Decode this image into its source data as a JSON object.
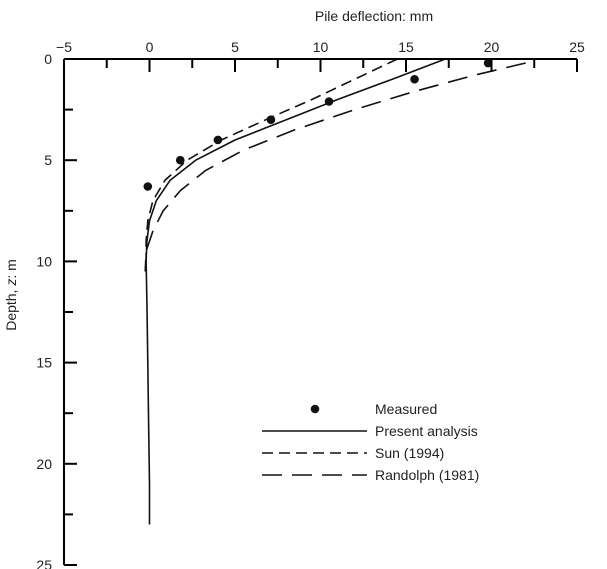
{
  "chart_data": {
    "type": "line",
    "xlabel": "Pile deflection: mm",
    "ylabel_prefix": "Depth, ",
    "ylabel_symbol": "z",
    "ylabel_suffix": ": m",
    "xlim": [
      -5,
      25
    ],
    "ylim": [
      0,
      25
    ],
    "y_inverted": true,
    "x_axis_position": "top",
    "grid": false,
    "legend_position": "bottom-right",
    "x_ticks": [
      -5,
      0,
      5,
      10,
      15,
      20,
      25
    ],
    "x_tick_labels": [
      "−5",
      "0",
      "5",
      "10",
      "15",
      "20",
      "25"
    ],
    "y_ticks": [
      0,
      5,
      10,
      15,
      20,
      25
    ],
    "y_tick_labels": [
      "0",
      "5",
      "10",
      "15",
      "20",
      "25"
    ],
    "series": [
      {
        "name": "Measured",
        "style": "points",
        "points": [
          [
            19.8,
            0.2
          ],
          [
            15.5,
            1.0
          ],
          [
            10.5,
            2.1
          ],
          [
            7.1,
            3.0
          ],
          [
            4.0,
            4.0
          ],
          [
            1.8,
            5.0
          ],
          [
            -0.1,
            6.3
          ]
        ]
      },
      {
        "name": "Present analysis",
        "style": "solid",
        "points": [
          [
            17.3,
            0.0
          ],
          [
            14.2,
            1.0
          ],
          [
            11.0,
            2.0
          ],
          [
            8.0,
            3.0
          ],
          [
            5.0,
            4.0
          ],
          [
            2.7,
            5.0
          ],
          [
            1.2,
            6.0
          ],
          [
            0.4,
            7.0
          ],
          [
            0.0,
            8.0
          ],
          [
            -0.15,
            9.0
          ],
          [
            -0.2,
            10.0
          ],
          [
            -0.15,
            12.0
          ],
          [
            -0.1,
            15.0
          ],
          [
            -0.05,
            18.0
          ],
          [
            0.0,
            21.0
          ],
          [
            0.0,
            23.0
          ]
        ]
      },
      {
        "name": "Sun (1994)",
        "style": "dashed",
        "points": [
          [
            14.5,
            0.0
          ],
          [
            12.0,
            1.0
          ],
          [
            9.5,
            2.0
          ],
          [
            6.8,
            3.0
          ],
          [
            4.2,
            4.0
          ],
          [
            2.2,
            5.0
          ],
          [
            0.9,
            6.0
          ],
          [
            0.2,
            7.0
          ],
          [
            -0.1,
            8.0
          ],
          [
            -0.2,
            9.0
          ],
          [
            -0.2,
            10.0
          ]
        ]
      },
      {
        "name": "Randolph (1981)",
        "style": "longdash",
        "points": [
          [
            22.0,
            0.2
          ],
          [
            19.0,
            0.8
          ],
          [
            15.5,
            1.6
          ],
          [
            12.0,
            2.5
          ],
          [
            8.5,
            3.5
          ],
          [
            5.5,
            4.5
          ],
          [
            3.3,
            5.5
          ],
          [
            1.8,
            6.5
          ],
          [
            0.8,
            7.5
          ],
          [
            0.2,
            8.5
          ],
          [
            -0.2,
            9.5
          ],
          [
            -0.25,
            10.5
          ]
        ]
      }
    ]
  }
}
